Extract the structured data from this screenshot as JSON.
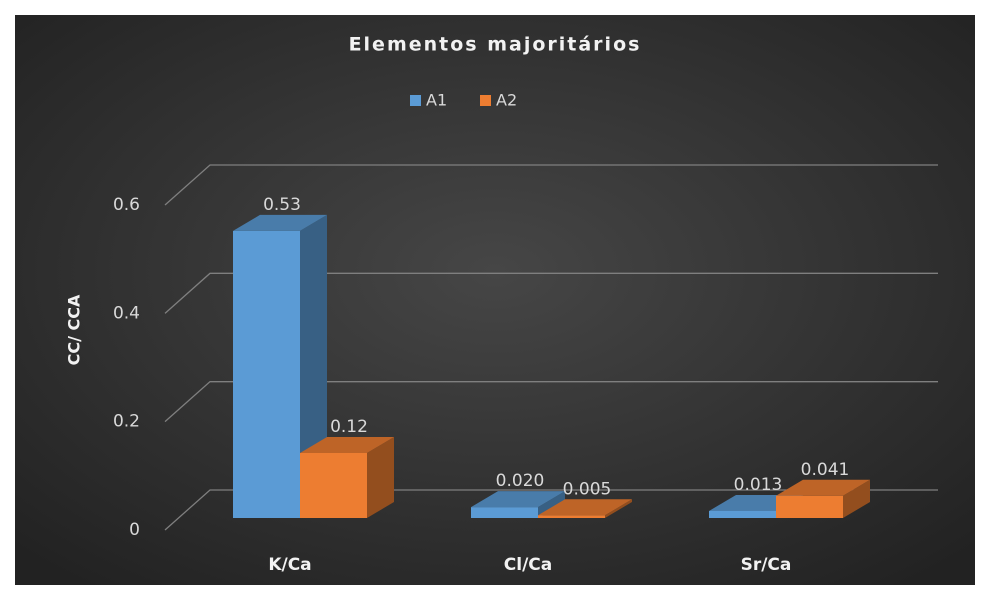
{
  "chart_data": {
    "type": "bar3d",
    "title": "Elementos majoritários",
    "y_label": "CC/ CCA",
    "categories": [
      "K/Ca",
      "Cl/Ca",
      "Sr/Ca"
    ],
    "series": [
      {
        "name": "A1",
        "color": "#5b9bd5",
        "values": [
          0.53,
          0.02,
          0.013
        ],
        "value_labels": [
          "0.53",
          "0.020",
          "0.013"
        ]
      },
      {
        "name": "A2",
        "color": "#ed7d31",
        "values": [
          0.12,
          0.005,
          0.041
        ],
        "value_labels": [
          "0.12",
          "0.005",
          "0.041"
        ]
      }
    ],
    "ylim": [
      0,
      0.6
    ],
    "yticks": [
      0,
      0.2,
      0.4,
      0.6
    ],
    "grid": true,
    "legend": "top"
  }
}
